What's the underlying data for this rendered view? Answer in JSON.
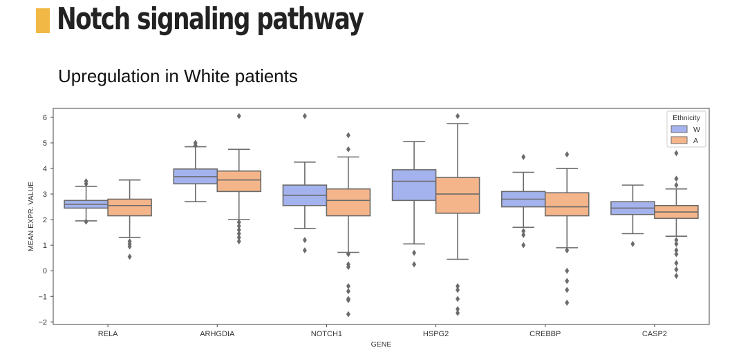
{
  "header": {
    "title": "Notch signaling pathway",
    "subtitle": "Upregulation in White patients"
  },
  "colors": {
    "accent": "#f2b845",
    "W": "#a4b3ee",
    "A": "#f5b58a",
    "line": "#6b6b6b"
  },
  "chart_data": {
    "type": "box",
    "xlabel": "GENE",
    "ylabel": "MEAN EXPR. VALUE",
    "ylim": [
      -2.1,
      6.35
    ],
    "yticks": [
      -2,
      -1,
      0,
      1,
      2,
      3,
      4,
      5,
      6
    ],
    "ytick_labels": [
      "−2",
      "−1",
      "0",
      "1",
      "2",
      "3",
      "4",
      "5",
      "6"
    ],
    "categories": [
      "RELA",
      "ARHGDIA",
      "NOTCH1",
      "HSPG2",
      "CREBBP",
      "CASP2"
    ],
    "legend": {
      "title": "Ethnicity",
      "position": "top-right"
    },
    "grid": false,
    "series": [
      {
        "name": "W",
        "color": "#a4b3ee",
        "boxes": [
          {
            "whislo": 1.95,
            "q1": 2.45,
            "med": 2.6,
            "q3": 2.75,
            "whishi": 3.3,
            "fliers": [
              1.92,
              3.4,
              3.5
            ]
          },
          {
            "whislo": 2.7,
            "q1": 3.4,
            "med": 3.68,
            "q3": 3.98,
            "whishi": 4.85,
            "fliers": [
              4.9,
              5.0
            ]
          },
          {
            "whislo": 1.65,
            "q1": 2.55,
            "med": 2.95,
            "q3": 3.35,
            "whishi": 4.25,
            "fliers": [
              1.2,
              0.8,
              6.05
            ]
          },
          {
            "whislo": 1.05,
            "q1": 2.75,
            "med": 3.5,
            "q3": 3.95,
            "whishi": 5.05,
            "fliers": [
              0.7,
              0.25
            ]
          },
          {
            "whislo": 1.7,
            "q1": 2.5,
            "med": 2.8,
            "q3": 3.1,
            "whishi": 3.85,
            "fliers": [
              1.55,
              1.4,
              1.0,
              4.45
            ]
          },
          {
            "whislo": 1.45,
            "q1": 2.2,
            "med": 2.45,
            "q3": 2.7,
            "whishi": 3.35,
            "fliers": [
              1.05
            ]
          }
        ]
      },
      {
        "name": "A",
        "color": "#f5b58a",
        "boxes": [
          {
            "whislo": 1.3,
            "q1": 2.15,
            "med": 2.55,
            "q3": 2.8,
            "whishi": 3.55,
            "fliers": [
              1.15,
              1.05,
              0.95,
              0.55
            ]
          },
          {
            "whislo": 2.0,
            "q1": 3.1,
            "med": 3.55,
            "q3": 3.9,
            "whishi": 4.75,
            "fliers": [
              1.9,
              1.75,
              1.6,
              1.45,
              1.3,
              1.15,
              6.05
            ]
          },
          {
            "whislo": 0.72,
            "q1": 2.15,
            "med": 2.75,
            "q3": 3.2,
            "whishi": 4.45,
            "fliers": [
              4.75,
              5.3,
              0.65,
              0.25,
              0.15,
              -0.6,
              -0.8,
              -1.1,
              -1.15,
              -1.7
            ]
          },
          {
            "whislo": 0.45,
            "q1": 2.25,
            "med": 3.0,
            "q3": 3.65,
            "whishi": 5.75,
            "fliers": [
              6.05,
              -0.6,
              -0.75,
              -1.1,
              -1.5,
              -1.65
            ]
          },
          {
            "whislo": 0.9,
            "q1": 2.15,
            "med": 2.5,
            "q3": 3.05,
            "whishi": 4.0,
            "fliers": [
              4.55,
              0.8,
              0.0,
              -0.4,
              -0.75,
              -1.25
            ]
          },
          {
            "whislo": 1.35,
            "q1": 2.05,
            "med": 2.3,
            "q3": 2.55,
            "whishi": 3.2,
            "fliers": [
              4.6,
              3.6,
              3.35,
              1.2,
              1.05,
              0.8,
              0.65,
              0.3,
              0.05,
              -0.2
            ]
          }
        ]
      }
    ]
  }
}
